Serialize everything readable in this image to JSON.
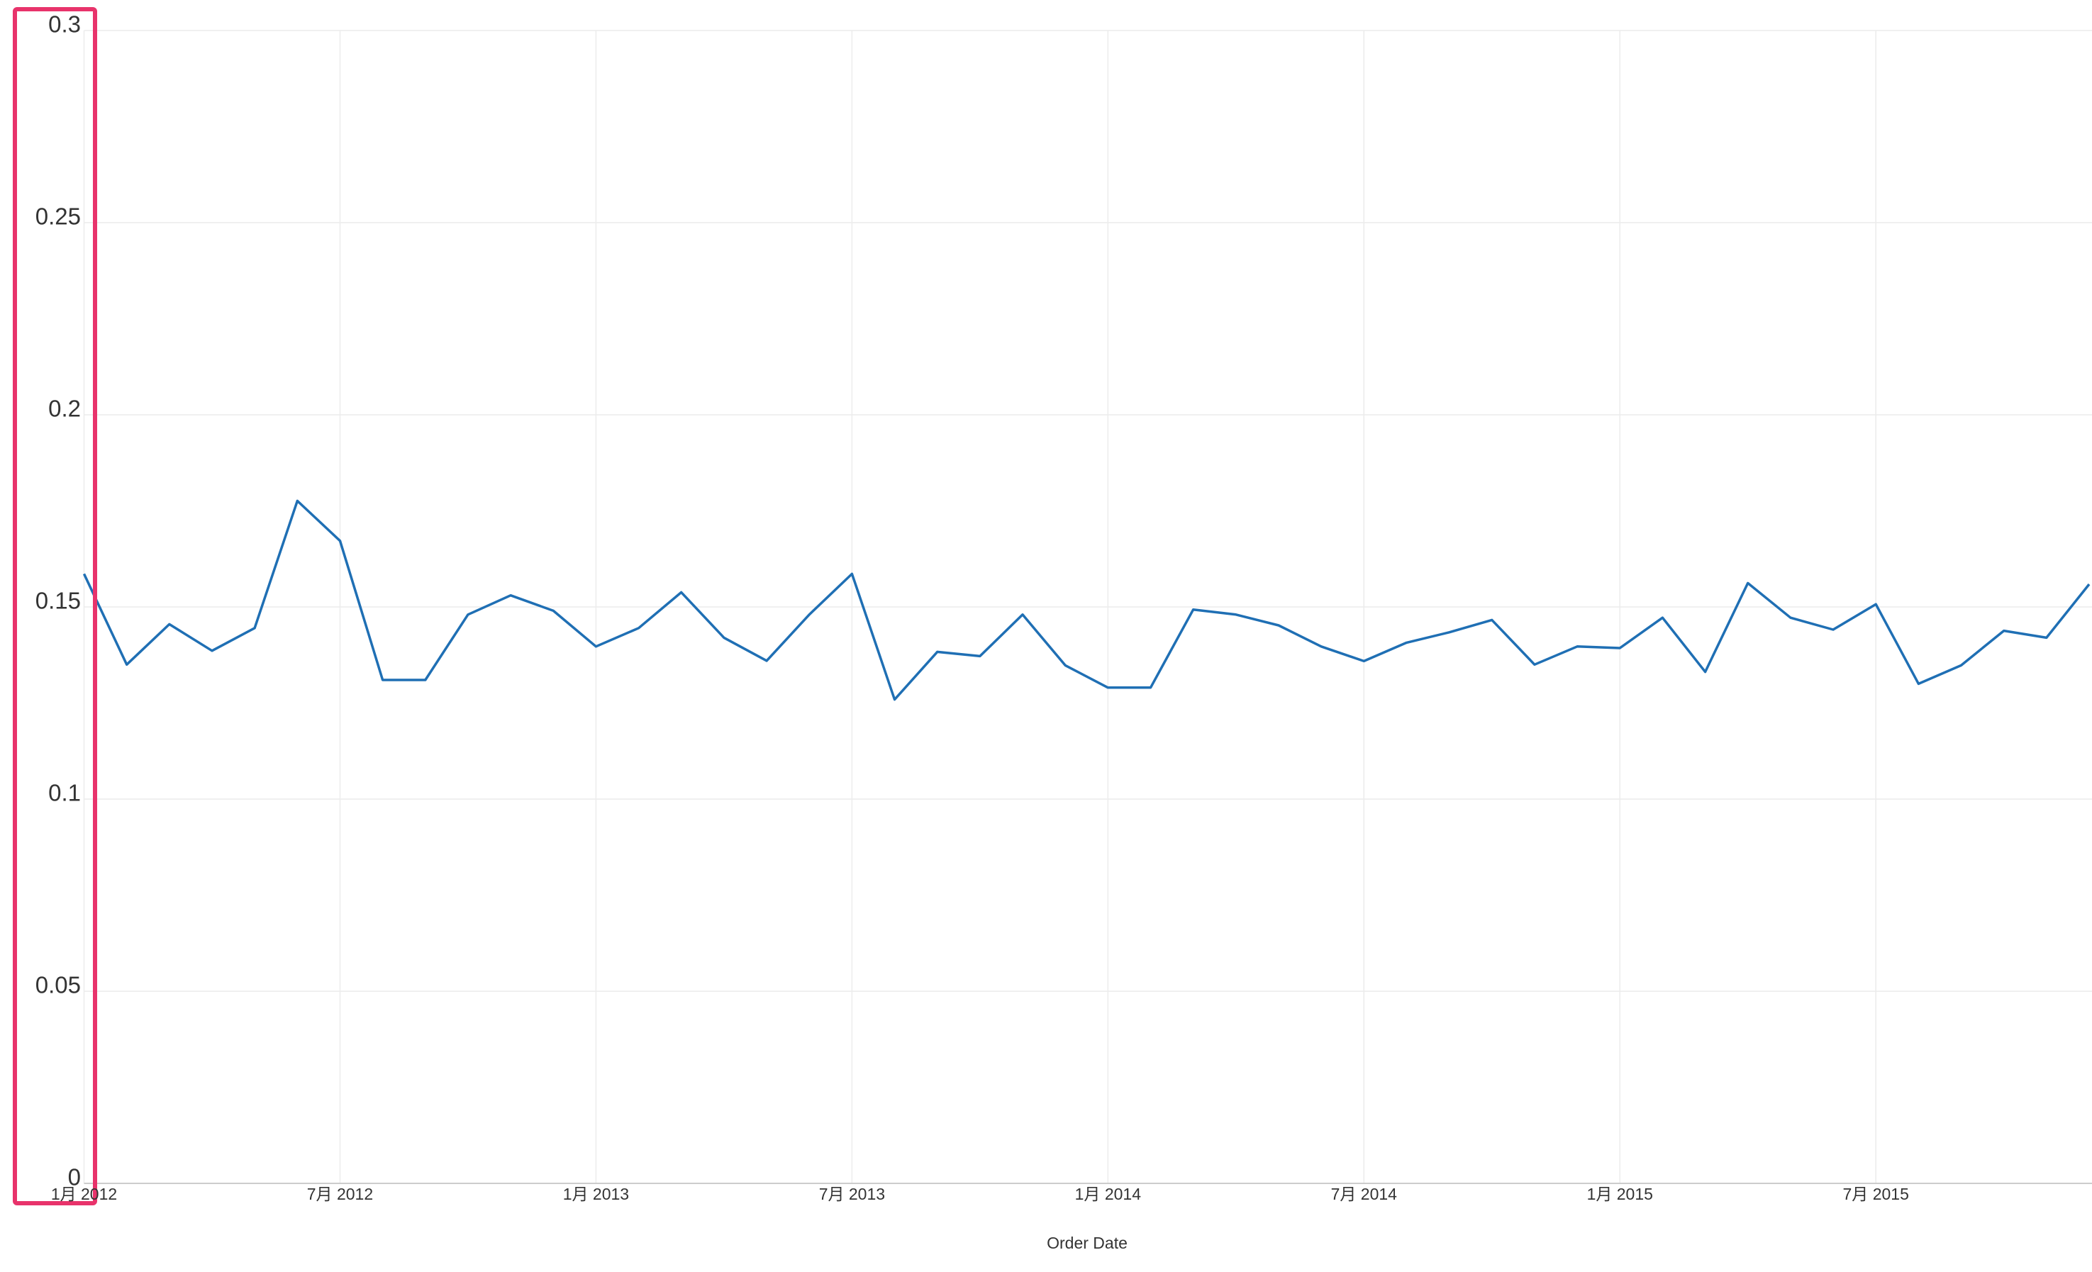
{
  "chart_data": {
    "type": "line",
    "x_label": "Order Date",
    "x": [
      "2012-01",
      "2012-02",
      "2012-03",
      "2012-04",
      "2012-05",
      "2012-06",
      "2012-07",
      "2012-08",
      "2012-09",
      "2012-10",
      "2012-11",
      "2012-12",
      "2013-01",
      "2013-02",
      "2013-03",
      "2013-04",
      "2013-05",
      "2013-06",
      "2013-07",
      "2013-08",
      "2013-09",
      "2013-10",
      "2013-11",
      "2013-12",
      "2014-01",
      "2014-02",
      "2014-03",
      "2014-04",
      "2014-05",
      "2014-06",
      "2014-07",
      "2014-08",
      "2014-09",
      "2014-10",
      "2014-11",
      "2014-12",
      "2015-01",
      "2015-02",
      "2015-03",
      "2015-04",
      "2015-05",
      "2015-06",
      "2015-07",
      "2015-08",
      "2015-09",
      "2015-10",
      "2015-11",
      "2015-12"
    ],
    "series": [
      {
        "color": "#1f6fb4",
        "values": [
          0.1586,
          0.135,
          0.1455,
          0.1386,
          0.1445,
          0.1776,
          0.1672,
          0.131,
          0.131,
          0.148,
          0.153,
          0.149,
          0.1397,
          0.1445,
          0.1538,
          0.142,
          0.136,
          0.148,
          0.1586,
          0.1259,
          0.1383,
          0.1372,
          0.148,
          0.1348,
          0.129,
          0.129,
          0.1493,
          0.148,
          0.1452,
          0.1397,
          0.1359,
          0.1407,
          0.1434,
          0.1466,
          0.135,
          0.1397,
          0.1393,
          0.1472,
          0.1331,
          0.1562,
          0.1472,
          0.1441,
          0.1507,
          0.13,
          0.1348,
          0.1438,
          0.142,
          0.1559
        ]
      }
    ],
    "xticks": [
      {
        "value": "2012-01",
        "label": "1月 2012"
      },
      {
        "value": "2012-07",
        "label": "7月 2012"
      },
      {
        "value": "2013-01",
        "label": "1月 2013"
      },
      {
        "value": "2013-07",
        "label": "7月 2013"
      },
      {
        "value": "2014-01",
        "label": "1月 2014"
      },
      {
        "value": "2014-07",
        "label": "7月 2014"
      },
      {
        "value": "2015-01",
        "label": "1月 2015"
      },
      {
        "value": "2015-07",
        "label": "7月 2015"
      }
    ],
    "ylim": [
      0,
      0.3
    ],
    "yticks": [
      0,
      0.05,
      0.1,
      0.15,
      0.2,
      0.25,
      0.3
    ],
    "grid": true
  }
}
